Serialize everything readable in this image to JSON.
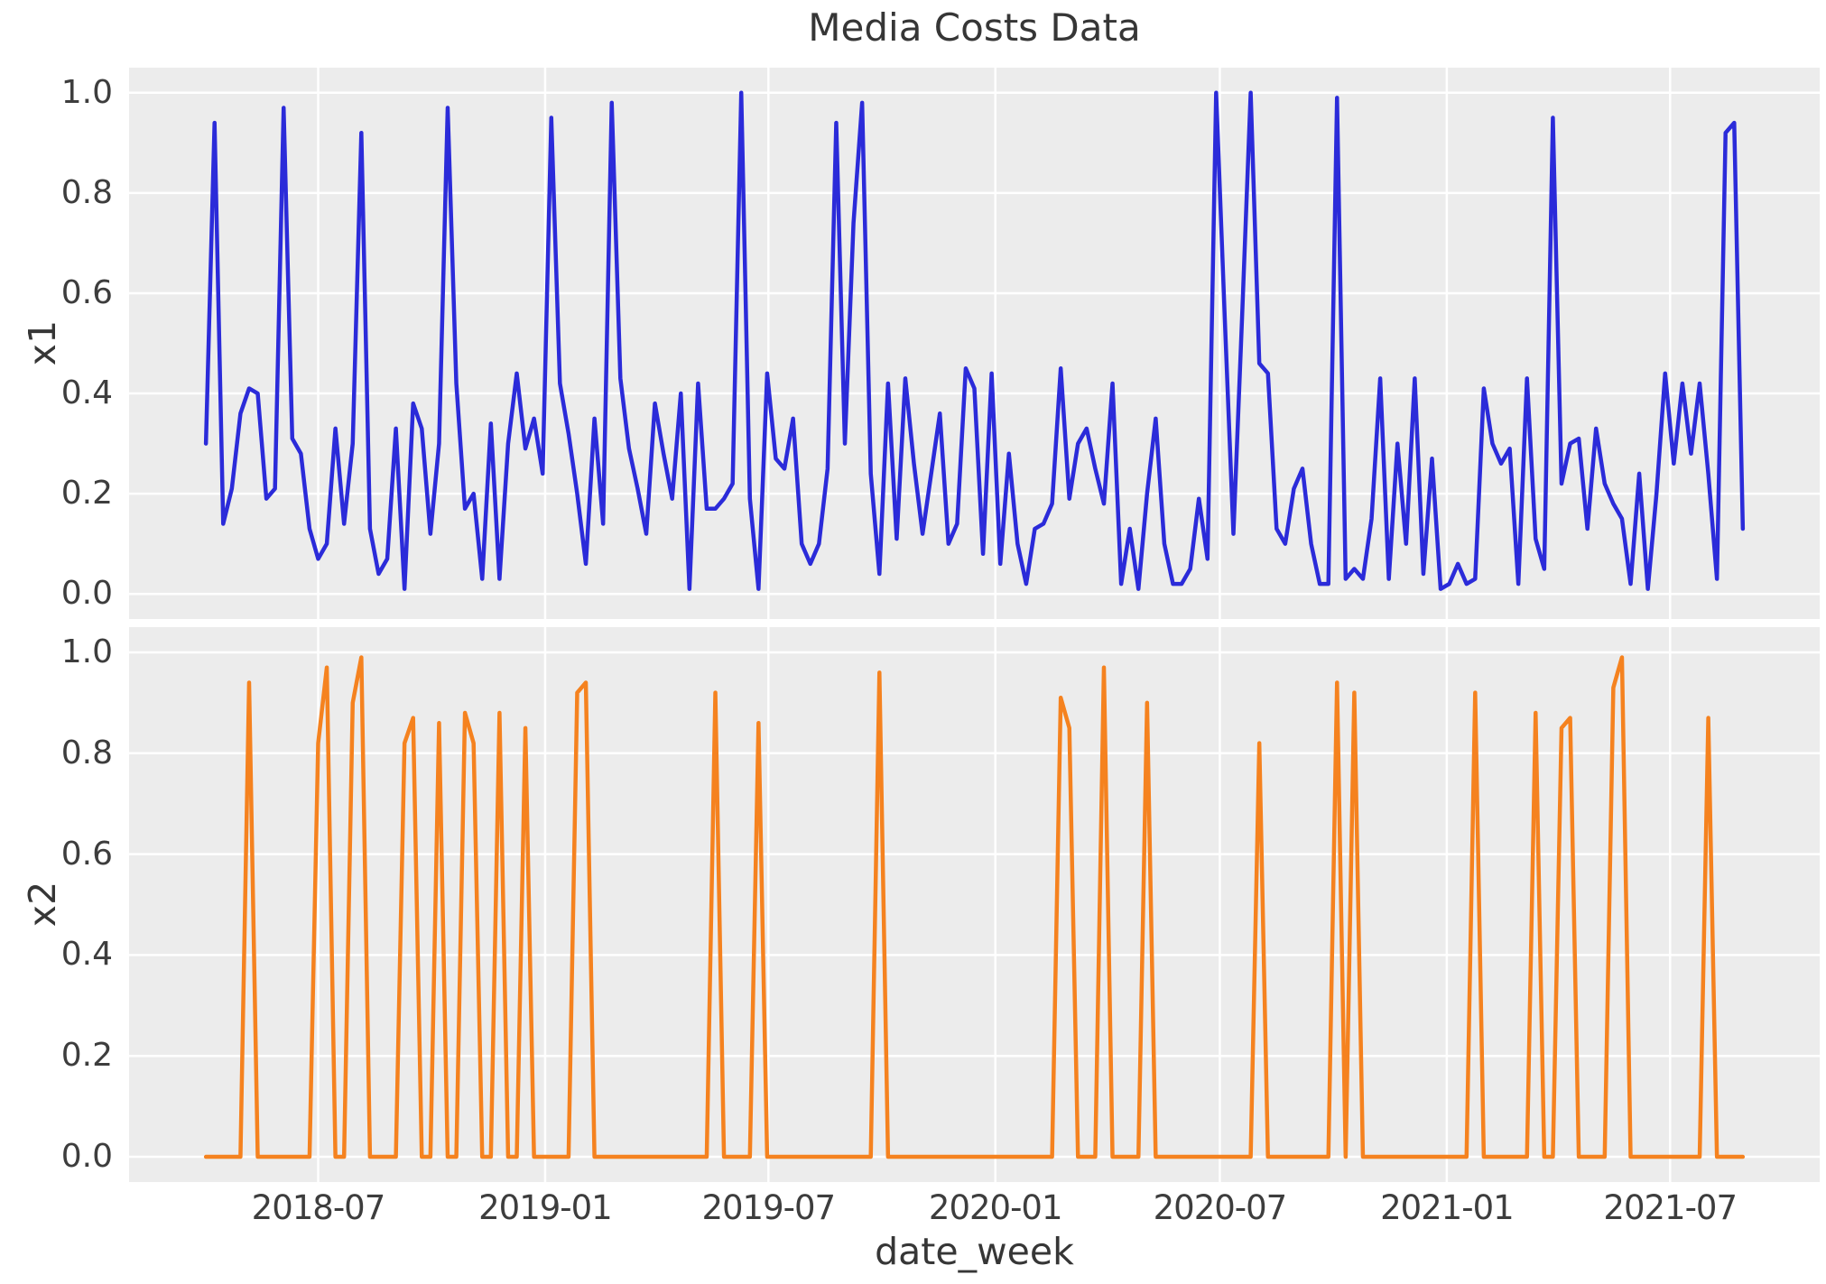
{
  "title": "Media Costs Data",
  "x_axis": {
    "label": "date_week",
    "tick_labels": [
      "2018-07",
      "2019-01",
      "2019-07",
      "2020-01",
      "2020-07",
      "2021-01",
      "2021-07"
    ],
    "tick_week_positions": [
      13.0,
      39.286,
      65.143,
      91.429,
      117.429,
      143.714,
      169.571
    ],
    "xlim_weeks": [
      -8.9,
      186.9
    ],
    "start_date": "2018-04-01",
    "end_date": "2021-08-29",
    "freq_days": 7,
    "num_points": 179
  },
  "y_axis": {
    "tick_labels": [
      "0.0",
      "0.2",
      "0.4",
      "0.6",
      "0.8",
      "1.0"
    ],
    "tick_values": [
      0.0,
      0.2,
      0.4,
      0.6,
      0.8,
      1.0
    ],
    "ylim": [
      -0.05,
      1.05
    ]
  },
  "style": {
    "figure_bg": "#ffffff",
    "axes_bg": "#ececec",
    "grid_color": "#ffffff",
    "text_color": "#363636",
    "tick_color": "#3d3d3d",
    "x1_color": "#2b2bd9",
    "x2_color": "#f5821f"
  },
  "chart_data": [
    {
      "type": "line",
      "name": "x1",
      "ylabel": "x1",
      "color_key": "x1_color",
      "x_unit": "weeks_since_2018-04-01",
      "values": [
        0.3,
        0.94,
        0.14,
        0.21,
        0.36,
        0.41,
        0.4,
        0.19,
        0.21,
        0.97,
        0.31,
        0.28,
        0.13,
        0.07,
        0.1,
        0.33,
        0.14,
        0.3,
        0.92,
        0.13,
        0.04,
        0.07,
        0.33,
        0.01,
        0.38,
        0.33,
        0.12,
        0.3,
        0.97,
        0.42,
        0.17,
        0.2,
        0.03,
        0.34,
        0.03,
        0.3,
        0.44,
        0.29,
        0.35,
        0.24,
        0.95,
        0.42,
        0.32,
        0.2,
        0.06,
        0.35,
        0.14,
        0.98,
        0.43,
        0.29,
        0.21,
        0.12,
        0.38,
        0.28,
        0.19,
        0.4,
        0.01,
        0.42,
        0.17,
        0.17,
        0.19,
        0.22,
        1.0,
        0.19,
        0.01,
        0.44,
        0.27,
        0.25,
        0.35,
        0.1,
        0.06,
        0.1,
        0.25,
        0.94,
        0.3,
        0.74,
        0.98,
        0.24,
        0.04,
        0.42,
        0.11,
        0.43,
        0.26,
        0.12,
        0.24,
        0.36,
        0.1,
        0.14,
        0.45,
        0.41,
        0.08,
        0.44,
        0.06,
        0.28,
        0.1,
        0.02,
        0.13,
        0.14,
        0.18,
        0.45,
        0.19,
        0.3,
        0.33,
        0.25,
        0.18,
        0.42,
        0.02,
        0.13,
        0.01,
        0.2,
        0.35,
        0.1,
        0.02,
        0.02,
        0.05,
        0.19,
        0.07,
        1.0,
        0.55,
        0.12,
        0.55,
        1.0,
        0.46,
        0.44,
        0.13,
        0.1,
        0.21,
        0.25,
        0.1,
        0.02,
        0.02,
        0.99,
        0.03,
        0.05,
        0.03,
        0.15,
        0.43,
        0.03,
        0.3,
        0.1,
        0.43,
        0.04,
        0.27,
        0.01,
        0.02,
        0.06,
        0.02,
        0.03,
        0.41,
        0.3,
        0.26,
        0.29,
        0.02,
        0.43,
        0.11,
        0.05,
        0.95,
        0.22,
        0.3,
        0.31,
        0.13,
        0.33,
        0.22,
        0.18,
        0.15,
        0.02,
        0.24,
        0.01,
        0.2,
        0.44,
        0.26,
        0.42,
        0.28,
        0.42,
        0.24,
        0.03,
        0.92,
        0.94,
        0.13
      ]
    },
    {
      "type": "line",
      "name": "x2",
      "ylabel": "x2",
      "color_key": "x2_color",
      "x_unit": "weeks_since_2018-04-01",
      "values": [
        0,
        0,
        0,
        0,
        0,
        0.94,
        0,
        0,
        0,
        0,
        0,
        0,
        0,
        0.82,
        0.97,
        0,
        0,
        0.9,
        0.99,
        0,
        0,
        0,
        0,
        0.82,
        0.87,
        0,
        0,
        0.86,
        0,
        0,
        0.88,
        0.82,
        0,
        0,
        0.88,
        0,
        0,
        0.85,
        0,
        0,
        0,
        0,
        0,
        0.92,
        0.94,
        0,
        0,
        0,
        0,
        0,
        0,
        0,
        0,
        0,
        0,
        0,
        0,
        0,
        0,
        0.92,
        0,
        0,
        0,
        0,
        0.86,
        0,
        0,
        0,
        0,
        0,
        0,
        0,
        0,
        0,
        0,
        0,
        0,
        0,
        0.96,
        0,
        0,
        0,
        0,
        0,
        0,
        0,
        0,
        0,
        0,
        0,
        0,
        0,
        0,
        0,
        0,
        0,
        0,
        0,
        0,
        0.91,
        0.85,
        0,
        0,
        0,
        0.97,
        0,
        0,
        0,
        0,
        0.9,
        0,
        0,
        0,
        0,
        0,
        0,
        0,
        0,
        0,
        0,
        0,
        0,
        0.82,
        0,
        0,
        0,
        0,
        0,
        0,
        0,
        0,
        0.94,
        0,
        0.92,
        0,
        0,
        0,
        0,
        0,
        0,
        0,
        0,
        0,
        0,
        0,
        0,
        0,
        0.92,
        0,
        0,
        0,
        0,
        0,
        0,
        0.88,
        0,
        0,
        0.85,
        0.87,
        0,
        0,
        0,
        0,
        0.93,
        0.99,
        0,
        0,
        0,
        0,
        0,
        0,
        0,
        0,
        0,
        0.87,
        0,
        0,
        0,
        0
      ]
    }
  ]
}
